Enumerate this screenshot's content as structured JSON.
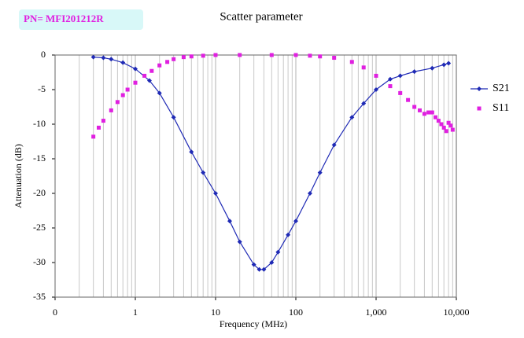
{
  "chart_data": {
    "type": "line",
    "title": "Scatter parameter",
    "annotation": "PN= MFI201212R",
    "x_label": "Frequency (MHz)",
    "y_label": "Attenuation (dB)",
    "x_scale": "log",
    "xlim": [
      0.1,
      10000
    ],
    "xticks": [
      {
        "value": 0.1,
        "label": "0"
      },
      1,
      10,
      100,
      {
        "value": 1000,
        "label": "1,000"
      },
      {
        "value": 10000,
        "label": "10,000"
      }
    ],
    "ylim": [
      -35,
      0
    ],
    "yticks": [
      0,
      -5,
      -10,
      -15,
      -20,
      -25,
      -30,
      -35
    ],
    "grid": "vertical",
    "legend": "right",
    "series": [
      {
        "name": "S21",
        "color": "#1f2ab5",
        "marker": "diamond",
        "x": [
          0.3,
          0.4,
          0.5,
          0.7,
          1,
          1.5,
          2,
          3,
          5,
          7,
          10,
          15,
          20,
          30,
          35,
          40,
          50,
          60,
          80,
          100,
          150,
          200,
          300,
          500,
          700,
          1000,
          1500,
          2000,
          3000,
          5000,
          7000,
          8000
        ],
        "values": [
          -0.3,
          -0.4,
          -0.6,
          -1.1,
          -2,
          -3.7,
          -5.5,
          -9,
          -14,
          -17,
          -20,
          -24,
          -27,
          -30.3,
          -31,
          -31,
          -30,
          -28.5,
          -26,
          -24,
          -20,
          -17,
          -13,
          -9,
          -7,
          -5,
          -3.5,
          -3,
          -2.4,
          -1.9,
          -1.4,
          -1.2
        ]
      },
      {
        "name": "S11",
        "color": "#e020e0",
        "marker": "square",
        "x": [
          0.3,
          0.35,
          0.4,
          0.5,
          0.6,
          0.7,
          0.8,
          1,
          1.3,
          1.6,
          2,
          2.5,
          3,
          4,
          5,
          7,
          10,
          20,
          50,
          100,
          150,
          200,
          300,
          500,
          700,
          1000,
          1500,
          2000,
          2500,
          3000,
          3500,
          4000,
          4500,
          5000,
          5500,
          6000,
          6500,
          7000,
          7500,
          8000,
          8500,
          9000
        ],
        "values": [
          -11.8,
          -10.5,
          -9.5,
          -8,
          -6.8,
          -5.8,
          -5,
          -4,
          -3,
          -2.3,
          -1.5,
          -1,
          -0.6,
          -0.3,
          -0.2,
          -0.1,
          0,
          0,
          0,
          0,
          -0.1,
          -0.2,
          -0.4,
          -1,
          -1.8,
          -3,
          -4.5,
          -5.5,
          -6.5,
          -7.5,
          -8,
          -8.5,
          -8.3,
          -8.3,
          -9,
          -9.5,
          -10,
          -10.5,
          -11,
          -9.8,
          -10.2,
          -10.8
        ]
      }
    ]
  }
}
